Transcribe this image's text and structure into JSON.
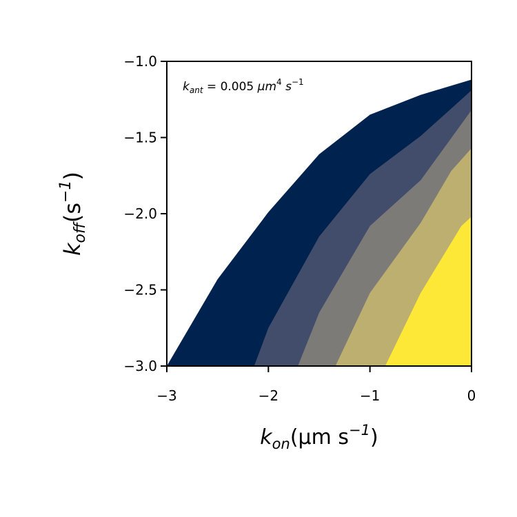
{
  "chart_data": {
    "type": "contour",
    "xlabel_main": "k",
    "xlabel_sub": "on",
    "xlabel_units": "(μm s",
    "xlabel_units_exp": "−1",
    "xlabel_units_close": ")",
    "ylabel_main": "k",
    "ylabel_sub": "off",
    "ylabel_units": "(s",
    "ylabel_units_exp": "−1",
    "ylabel_units_close": ")",
    "xlim": [
      -3,
      0
    ],
    "ylim": [
      -3,
      -1
    ],
    "xticks": [
      -3,
      -2,
      -1,
      0
    ],
    "xtick_labels": [
      "−3",
      "−2",
      "−1",
      "0"
    ],
    "yticks": [
      -3.0,
      -2.5,
      -2.0,
      -1.5,
      -1.0
    ],
    "ytick_labels": [
      "−3.0",
      "−2.5",
      "−2.0",
      "−1.5",
      "−1.0"
    ],
    "annotation": {
      "k": "k",
      "sub": "ant",
      "eq": " = 0.005 ",
      "unit1": "μm",
      "exp1": "4",
      "unit2": " s",
      "exp2": "−1"
    },
    "colormap": "cividis",
    "levels": [
      {
        "color": "#00224e",
        "boundary": [
          [
            -3.0,
            -3.0
          ],
          [
            -2.5,
            -2.43
          ],
          [
            -2.0,
            -1.99
          ],
          [
            -1.5,
            -1.61
          ],
          [
            -1.0,
            -1.35
          ],
          [
            -0.5,
            -1.22
          ],
          [
            0.0,
            -1.12
          ]
        ]
      },
      {
        "color": "#414d6b",
        "boundary": [
          [
            -2.14,
            -3.0
          ],
          [
            -2.0,
            -2.75
          ],
          [
            -1.5,
            -2.15
          ],
          [
            -1.0,
            -1.74
          ],
          [
            -0.5,
            -1.49
          ],
          [
            0.0,
            -1.19
          ]
        ]
      },
      {
        "color": "#7c7b78",
        "boundary": [
          [
            -1.71,
            -3.0
          ],
          [
            -1.5,
            -2.65
          ],
          [
            -1.0,
            -2.08
          ],
          [
            -0.5,
            -1.78
          ],
          [
            0.0,
            -1.32
          ]
        ]
      },
      {
        "color": "#bcaf6f",
        "boundary": [
          [
            -1.34,
            -3.0
          ],
          [
            -1.0,
            -2.52
          ],
          [
            -0.5,
            -2.06
          ],
          [
            -0.2,
            -1.72
          ],
          [
            0.0,
            -1.57
          ]
        ]
      },
      {
        "color": "#fde737",
        "boundary": [
          [
            -0.85,
            -3.0
          ],
          [
            -0.5,
            -2.52
          ],
          [
            -0.1,
            -2.08
          ],
          [
            0.0,
            -2.02
          ]
        ]
      }
    ]
  }
}
